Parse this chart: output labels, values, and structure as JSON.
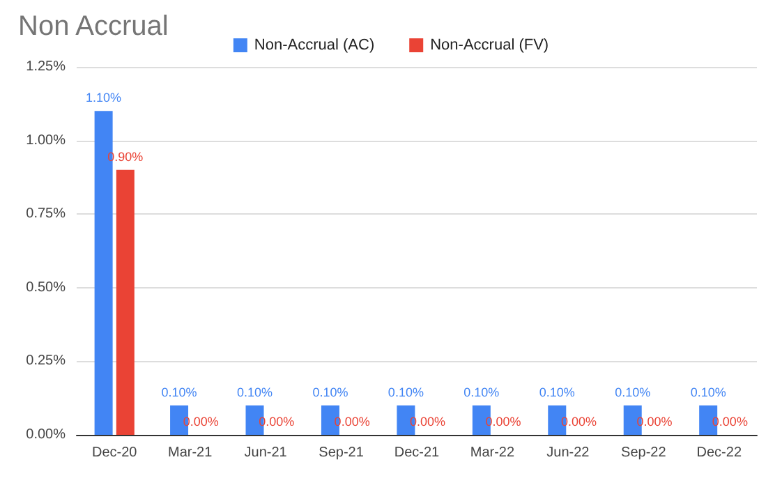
{
  "chart_data": {
    "type": "bar",
    "title": "Non Accrual",
    "categories": [
      "Dec-20",
      "Mar-21",
      "Jun-21",
      "Sep-21",
      "Dec-21",
      "Mar-22",
      "Jun-22",
      "Sep-22",
      "Dec-22"
    ],
    "series": [
      {
        "name": "Non-Accrual (AC)",
        "color": "#4285f4",
        "values": [
          1.1,
          0.1,
          0.1,
          0.1,
          0.1,
          0.1,
          0.1,
          0.1,
          0.1
        ],
        "value_labels": [
          "1.10%",
          "0.10%",
          "0.10%",
          "0.10%",
          "0.10%",
          "0.10%",
          "0.10%",
          "0.10%",
          "0.10%"
        ]
      },
      {
        "name": "Non-Accrual (FV)",
        "color": "#ea4335",
        "values": [
          0.9,
          0,
          0,
          0,
          0,
          0,
          0,
          0,
          0
        ],
        "value_labels": [
          "0.90%",
          "0.00%",
          "0.00%",
          "0.00%",
          "0.00%",
          "0.00%",
          "0.00%",
          "0.00%",
          "0.00%"
        ]
      }
    ],
    "ylim": [
      0,
      1.25
    ],
    "yticks": [
      {
        "value": 0,
        "label": "0.00%"
      },
      {
        "value": 0.25,
        "label": "0.25%"
      },
      {
        "value": 0.5,
        "label": "0.50%"
      },
      {
        "value": 0.75,
        "label": "0.75%"
      },
      {
        "value": 1,
        "label": "1.00%"
      },
      {
        "value": 1.25,
        "label": "1.25%"
      }
    ],
    "grid": "y",
    "legend": "top"
  }
}
